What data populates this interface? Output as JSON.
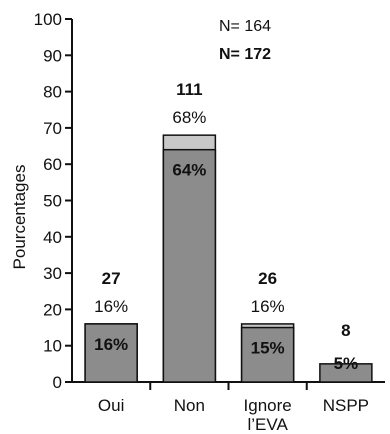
{
  "chart_data": {
    "type": "bar",
    "ylabel": "Pourcentages",
    "ylim": [
      0,
      100
    ],
    "yticks": [
      0,
      10,
      20,
      30,
      40,
      50,
      60,
      70,
      80,
      90,
      100
    ],
    "legend": {
      "n1": "N= 164",
      "n2": "N= 172"
    },
    "categories": [
      {
        "label": "Oui",
        "label2": ""
      },
      {
        "label": "Non",
        "label2": ""
      },
      {
        "label": "Ignore",
        "label2": "l’EVA"
      },
      {
        "label": "NSPP",
        "label2": ""
      }
    ],
    "series": [
      {
        "values": [
          16,
          68,
          16,
          null
        ],
        "labels": [
          "16%",
          "68%",
          "16%",
          ""
        ],
        "counts": [
          "27",
          "111",
          "26",
          ""
        ],
        "color": "#c8c8c8"
      },
      {
        "values": [
          16,
          64,
          15,
          5
        ],
        "labels": [
          "16%",
          "64%",
          "15%",
          "5%"
        ],
        "counts": [
          "",
          "",
          "",
          "8"
        ],
        "color": "#8c8c8c"
      }
    ]
  }
}
